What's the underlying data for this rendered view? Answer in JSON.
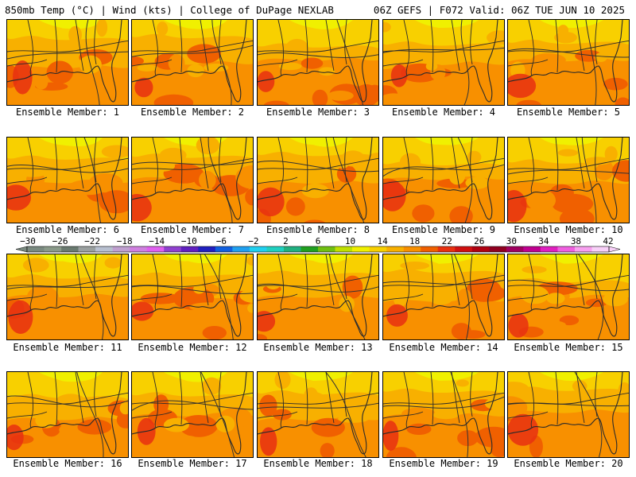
{
  "header": {
    "left": "850mb Temp (°C) | Wind (kts) | College of DuPage NEXLAB",
    "right": "06Z GEFS | F072 Valid: 06Z TUE JUN 10 2025"
  },
  "members": [
    "Ensemble Member: 1",
    "Ensemble Member: 2",
    "Ensemble Member: 3",
    "Ensemble Member: 4",
    "Ensemble Member: 5",
    "Ensemble Member: 6",
    "Ensemble Member: 7",
    "Ensemble Member: 8",
    "Ensemble Member: 9",
    "Ensemble Member: 10",
    "Ensemble Member: 11",
    "Ensemble Member: 12",
    "Ensemble Member: 13",
    "Ensemble Member: 14",
    "Ensemble Member: 15",
    "Ensemble Member: 16",
    "Ensemble Member: 17",
    "Ensemble Member: 18",
    "Ensemble Member: 19",
    "Ensemble Member: 20"
  ],
  "colorbar": {
    "labels": [
      "−30",
      "−26",
      "−22",
      "−18",
      "−14",
      "−10",
      "−6",
      "−2",
      "2",
      "6",
      "10",
      "14",
      "18",
      "22",
      "26",
      "30",
      "34",
      "38",
      "42"
    ],
    "colors": [
      "#7a8a80",
      "#8a9a8a",
      "#6a7a70",
      "#9aa0a0",
      "#b8c0d0",
      "#c0a0d0",
      "#d080e0",
      "#e060f0",
      "#9040d0",
      "#6020c0",
      "#2020c0",
      "#1060e0",
      "#20a0f0",
      "#20d0f0",
      "#20d0c0",
      "#20b080",
      "#20a020",
      "#70c010",
      "#c0e000",
      "#f0f000",
      "#f8d000",
      "#f8b000",
      "#f89000",
      "#f06000",
      "#e83010",
      "#d01010",
      "#b00010",
      "#900020",
      "#a00060",
      "#c00090",
      "#e020c0",
      "#f060e0",
      "#f8a0f0",
      "#f8d0f8"
    ]
  },
  "map_colors": {
    "pale_yellow": "#f0f000",
    "yellow": "#f8d000",
    "light_orange": "#f8b000",
    "orange": "#f89000",
    "dark_orange": "#f06000",
    "red_orange": "#e83010",
    "border": "#000000",
    "coast": "#2a2a2a"
  }
}
